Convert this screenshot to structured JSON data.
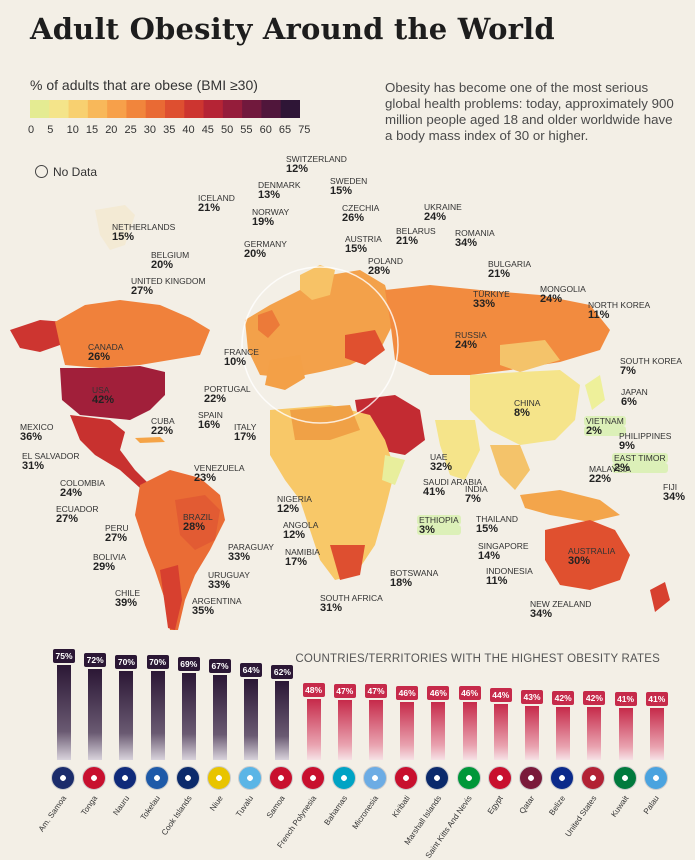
{
  "title": "Adult Obesity Around the World",
  "legend": {
    "title": "% of adults that are obese (BMI ≥30)",
    "ticks": [
      "0",
      "5",
      "10",
      "15",
      "20",
      "25",
      "30",
      "35",
      "40",
      "45",
      "50",
      "55",
      "60",
      "65",
      "75"
    ],
    "colors": [
      "#e4eb92",
      "#f4e48a",
      "#f8d070",
      "#f8b85a",
      "#f7a04a",
      "#f1853c",
      "#e96a34",
      "#de4f30",
      "#cd3530",
      "#b52435",
      "#951d3b",
      "#71193d",
      "#50163b",
      "#2e1536"
    ]
  },
  "description": "Obesity has become one of the most serious global health problems: today, approximately 900 million people aged 18 and older worldwide have a body mass index of 30 or higher.",
  "no_data_label": "No Data",
  "countries": [
    {
      "name": "SWITZERLAND",
      "value": "12%"
    },
    {
      "name": "SWEDEN",
      "value": "15%"
    },
    {
      "name": "DENMARK",
      "value": "13%"
    },
    {
      "name": "ICELAND",
      "value": "21%"
    },
    {
      "name": "NORWAY",
      "value": "19%"
    },
    {
      "name": "CZECHIA",
      "value": "26%"
    },
    {
      "name": "UKRAINE",
      "value": "24%"
    },
    {
      "name": "NETHERLANDS",
      "value": "15%"
    },
    {
      "name": "GERMANY",
      "value": "20%"
    },
    {
      "name": "AUSTRIA",
      "value": "15%"
    },
    {
      "name": "BELARUS",
      "value": "21%"
    },
    {
      "name": "ROMANIA",
      "value": "34%"
    },
    {
      "name": "BELGIUM",
      "value": "20%"
    },
    {
      "name": "POLAND",
      "value": "28%"
    },
    {
      "name": "BULGARIA",
      "value": "21%"
    },
    {
      "name": "UNITED KINGDOM",
      "value": "27%"
    },
    {
      "name": "TÜRKIYE",
      "value": "33%"
    },
    {
      "name": "MONGOLIA",
      "value": "24%"
    },
    {
      "name": "NORTH KOREA",
      "value": "11%"
    },
    {
      "name": "CANADA",
      "value": "26%"
    },
    {
      "name": "FRANCE",
      "value": "10%"
    },
    {
      "name": "RUSSIA",
      "value": "24%"
    },
    {
      "name": "SOUTH KOREA",
      "value": "7%"
    },
    {
      "name": "USA",
      "value": "42%"
    },
    {
      "name": "PORTUGAL",
      "value": "22%"
    },
    {
      "name": "JAPAN",
      "value": "6%"
    },
    {
      "name": "SPAIN",
      "value": "16%"
    },
    {
      "name": "CHINA",
      "value": "8%"
    },
    {
      "name": "ITALY",
      "value": "17%"
    },
    {
      "name": "VIETNAM",
      "value": "2%"
    },
    {
      "name": "CUBA",
      "value": "22%"
    },
    {
      "name": "MEXICO",
      "value": "36%"
    },
    {
      "name": "PHILIPPINES",
      "value": "9%"
    },
    {
      "name": "EL SALVADOR",
      "value": "31%"
    },
    {
      "name": "UAE",
      "value": "32%"
    },
    {
      "name": "EAST TIMOR",
      "value": "2%"
    },
    {
      "name": "VENEZUELA",
      "value": "23%"
    },
    {
      "name": "MALAYSIA",
      "value": "22%"
    },
    {
      "name": "COLOMBIA",
      "value": "24%"
    },
    {
      "name": "SAUDI ARABIA",
      "value": "41%"
    },
    {
      "name": "INDIA",
      "value": "7%"
    },
    {
      "name": "FIJI",
      "value": "34%"
    },
    {
      "name": "NIGERIA",
      "value": "12%"
    },
    {
      "name": "ECUADOR",
      "value": "27%"
    },
    {
      "name": "ETHIOPIA",
      "value": "3%"
    },
    {
      "name": "THAILAND",
      "value": "15%"
    },
    {
      "name": "BRAZIL",
      "value": "28%"
    },
    {
      "name": "ANGOLA",
      "value": "12%"
    },
    {
      "name": "PERU",
      "value": "27%"
    },
    {
      "name": "SINGAPORE",
      "value": "14%"
    },
    {
      "name": "PARAGUAY",
      "value": "33%"
    },
    {
      "name": "NAMIBIA",
      "value": "17%"
    },
    {
      "name": "AUSTRALIA",
      "value": "30%"
    },
    {
      "name": "BOLIVIA",
      "value": "29%"
    },
    {
      "name": "INDONESIA",
      "value": "11%"
    },
    {
      "name": "URUGUAY",
      "value": "33%"
    },
    {
      "name": "BOTSWANA",
      "value": "18%"
    },
    {
      "name": "CHILE",
      "value": "39%"
    },
    {
      "name": "ARGENTINA",
      "value": "35%"
    },
    {
      "name": "SOUTH AFRICA",
      "value": "31%"
    },
    {
      "name": "NEW ZEALAND",
      "value": "34%"
    }
  ],
  "chart_data": {
    "type": "bar",
    "title": "COUNTRIES/TERRITORIES WITH THE HIGHEST OBESITY RATES",
    "categories": [
      "Am. Samoa",
      "Tonga",
      "Nauru",
      "Tokelau",
      "Cook Islands",
      "Niue",
      "Tuvalu",
      "Samoa",
      "French Polynesia",
      "Bahamas",
      "Micronesia",
      "Kiribati",
      "Marshall Islands",
      "Saint Kitts And Nevis",
      "Egypt",
      "Qatar",
      "Belize",
      "United States",
      "Kuwait",
      "Palau"
    ],
    "values": [
      75,
      72,
      70,
      70,
      69,
      67,
      64,
      62,
      48,
      47,
      47,
      46,
      46,
      46,
      44,
      43,
      42,
      42,
      41,
      41
    ],
    "value_labels": [
      "75%",
      "72%",
      "70%",
      "70%",
      "69%",
      "67%",
      "64%",
      "62%",
      "48%",
      "47%",
      "47%",
      "46%",
      "46%",
      "46%",
      "44%",
      "43%",
      "42%",
      "42%",
      "41%",
      "41%"
    ],
    "ylim": [
      0,
      75
    ]
  }
}
